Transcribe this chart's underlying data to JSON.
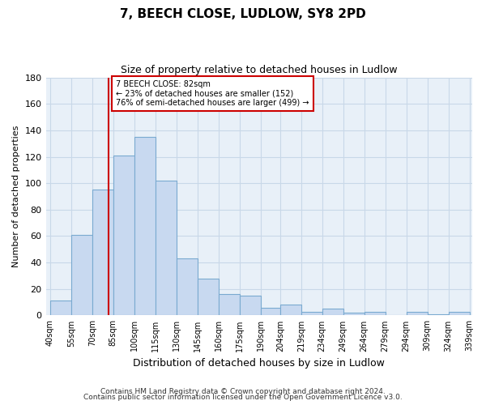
{
  "title": "7, BEECH CLOSE, LUDLOW, SY8 2PD",
  "subtitle": "Size of property relative to detached houses in Ludlow",
  "xlabel": "Distribution of detached houses by size in Ludlow",
  "ylabel": "Number of detached properties",
  "bar_left_edges": [
    40,
    55,
    70,
    85,
    100,
    115,
    130,
    145,
    160,
    175,
    190,
    204,
    219,
    234,
    249,
    264,
    279,
    294,
    309,
    324
  ],
  "bar_right_edges": [
    55,
    70,
    85,
    100,
    115,
    130,
    145,
    160,
    175,
    190,
    204,
    219,
    234,
    249,
    264,
    279,
    294,
    309,
    324,
    339
  ],
  "bar_heights": [
    11,
    61,
    95,
    121,
    135,
    102,
    43,
    28,
    16,
    15,
    6,
    8,
    3,
    5,
    2,
    3,
    0,
    3,
    1,
    3
  ],
  "bar_color": "#c8d9f0",
  "bar_edgecolor": "#7aaad0",
  "ylim": [
    0,
    180
  ],
  "yticks": [
    0,
    20,
    40,
    60,
    80,
    100,
    120,
    140,
    160,
    180
  ],
  "xtick_labels": [
    "40sqm",
    "55sqm",
    "70sqm",
    "85sqm",
    "100sqm",
    "115sqm",
    "130sqm",
    "145sqm",
    "160sqm",
    "175sqm",
    "190sqm",
    "204sqm",
    "219sqm",
    "234sqm",
    "249sqm",
    "264sqm",
    "279sqm",
    "294sqm",
    "309sqm",
    "324sqm",
    "339sqm"
  ],
  "xtick_positions": [
    40,
    55,
    70,
    85,
    100,
    115,
    130,
    145,
    160,
    175,
    190,
    204,
    219,
    234,
    249,
    264,
    279,
    294,
    309,
    324,
    339
  ],
  "vline_x": 82,
  "vline_color": "#cc0000",
  "annotation_title": "7 BEECH CLOSE: 82sqm",
  "annotation_line1": "← 23% of detached houses are smaller (152)",
  "annotation_line2": "76% of semi-detached houses are larger (499) →",
  "footer1": "Contains HM Land Registry data © Crown copyright and database right 2024.",
  "footer2": "Contains public sector information licensed under the Open Government Licence v3.0.",
  "background_color": "#ffffff",
  "grid_color": "#c8d8e8",
  "plot_bg_color": "#e8f0f8"
}
